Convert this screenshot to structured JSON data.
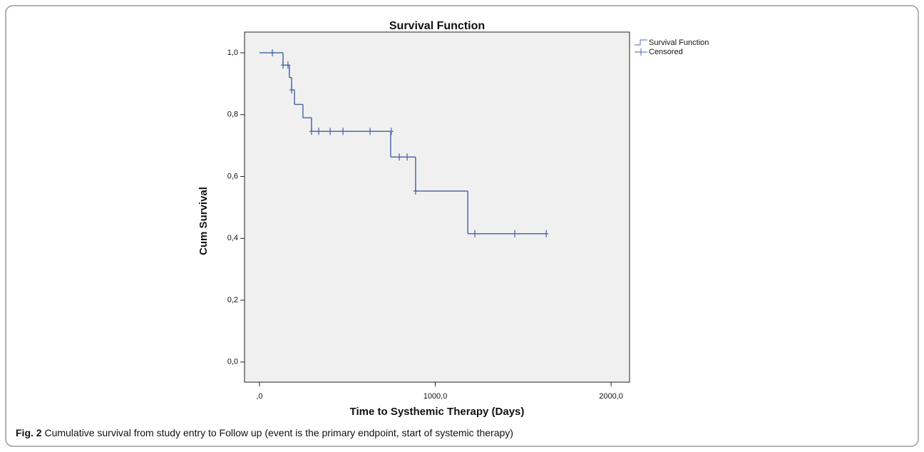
{
  "chart_data": {
    "type": "step",
    "title": "Survival Function",
    "x_label": "Time to Systhemic Therapy (Days)",
    "y_label": "Cum Survival",
    "xlim": [
      -85,
      2105
    ],
    "ylim": [
      -0.065,
      1.067
    ],
    "xticks": [
      {
        "value": 0,
        "label": ",0"
      },
      {
        "value": 1000,
        "label": "1000,0"
      },
      {
        "value": 2000,
        "label": "2000,0"
      }
    ],
    "yticks": [
      {
        "value": 0,
        "label": "0,0"
      },
      {
        "value": 0.2,
        "label": "0,2"
      },
      {
        "value": 0.4,
        "label": "0,4"
      },
      {
        "value": 0.6,
        "label": "0,6"
      },
      {
        "value": 0.8,
        "label": "0,8"
      },
      {
        "value": 1,
        "label": "1,0"
      }
    ],
    "series": [
      {
        "name": "Survival Function",
        "color": "#5068a8",
        "x": [
          0,
          134,
          170,
          183,
          199,
          247,
          296,
          746,
          888,
          1185,
          1631
        ],
        "values": [
          1.0,
          0.96,
          0.92,
          0.88,
          0.833,
          0.79,
          0.746,
          0.663,
          0.553,
          0.415,
          0.415
        ]
      },
      {
        "name": "Censored",
        "color": "#5068a8",
        "marker": "+",
        "x": [
          73,
          134,
          162,
          183,
          296,
          337,
          402,
          475,
          629,
          750,
          795,
          840,
          888,
          1225,
          1452,
          1631
        ],
        "values": [
          1.0,
          0.96,
          0.96,
          0.88,
          0.746,
          0.746,
          0.746,
          0.746,
          0.746,
          0.746,
          0.663,
          0.663,
          0.553,
          0.415,
          0.415,
          0.415
        ]
      }
    ]
  },
  "caption": {
    "label": "Fig. 2",
    "text": "Cumulative survival from study entry to Follow up (event is the primary endpoint, start of systemic therapy)"
  }
}
